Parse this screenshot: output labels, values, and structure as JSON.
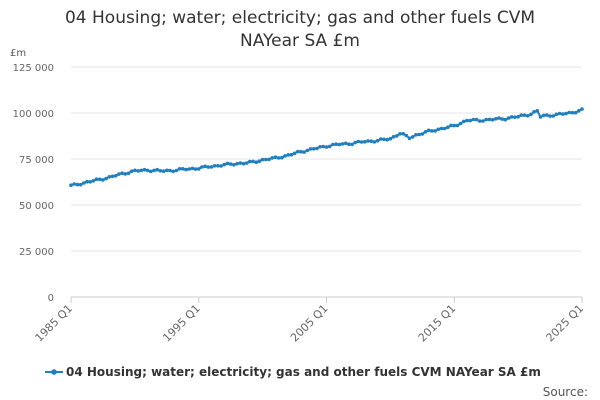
{
  "chart_data": {
    "type": "line",
    "title_lines": [
      "04 Housing; water; electricity; gas and other fuels CVM",
      "NAYear SA £m"
    ],
    "ylabel": "£m",
    "ylim": [
      0,
      125000
    ],
    "yticks": [
      0,
      25000,
      50000,
      75000,
      100000,
      125000
    ],
    "ytick_labels": [
      "0",
      "25 000",
      "50 000",
      "75 000",
      "100 000",
      "125 000"
    ],
    "xticks": [
      1985,
      1995,
      2005,
      2015,
      2025
    ],
    "xtick_labels": [
      "1985 Q1",
      "1995 Q1",
      "2005 Q1",
      "2015 Q1",
      "2025 Q1"
    ],
    "xlim": [
      1985,
      2025
    ],
    "grid": "horizontal",
    "legend_position": "bottom",
    "series": [
      {
        "name": "04 Housing; water; electricity; gas and other fuels CVM NAYear SA £m",
        "color": "#1f7fbf",
        "anchors": [
          [
            1985,
            60500
          ],
          [
            1986,
            62000
          ],
          [
            1987,
            63500
          ],
          [
            1988,
            65000
          ],
          [
            1989,
            67000
          ],
          [
            1990,
            68500
          ],
          [
            1991,
            69000
          ],
          [
            1992,
            68500
          ],
          [
            1993,
            68800
          ],
          [
            1994,
            69500
          ],
          [
            1995,
            70000
          ],
          [
            1996,
            71000
          ],
          [
            1997,
            71800
          ],
          [
            1998,
            72500
          ],
          [
            1999,
            73000
          ],
          [
            2000,
            74500
          ],
          [
            2001,
            75500
          ],
          [
            2002,
            77000
          ],
          [
            2003,
            79000
          ],
          [
            2004,
            80500
          ],
          [
            2005,
            82000
          ],
          [
            2006,
            83000
          ],
          [
            2007,
            83500
          ],
          [
            2008,
            84500
          ],
          [
            2009,
            85000
          ],
          [
            2010,
            86000
          ],
          [
            2010.75,
            89000
          ],
          [
            2011.5,
            86500
          ],
          [
            2012,
            88000
          ],
          [
            2013,
            90000
          ],
          [
            2014,
            91500
          ],
          [
            2015,
            93000
          ],
          [
            2016,
            96000
          ],
          [
            2017,
            96000
          ],
          [
            2018,
            96500
          ],
          [
            2019,
            97000
          ],
          [
            2020,
            98000
          ],
          [
            2021,
            99500
          ],
          [
            2021.5,
            101000
          ],
          [
            2021.75,
            98000
          ],
          [
            2022,
            98500
          ],
          [
            2023,
            99000
          ],
          [
            2024,
            100000
          ],
          [
            2025,
            101500
          ]
        ]
      }
    ],
    "source_label": "Source:"
  }
}
